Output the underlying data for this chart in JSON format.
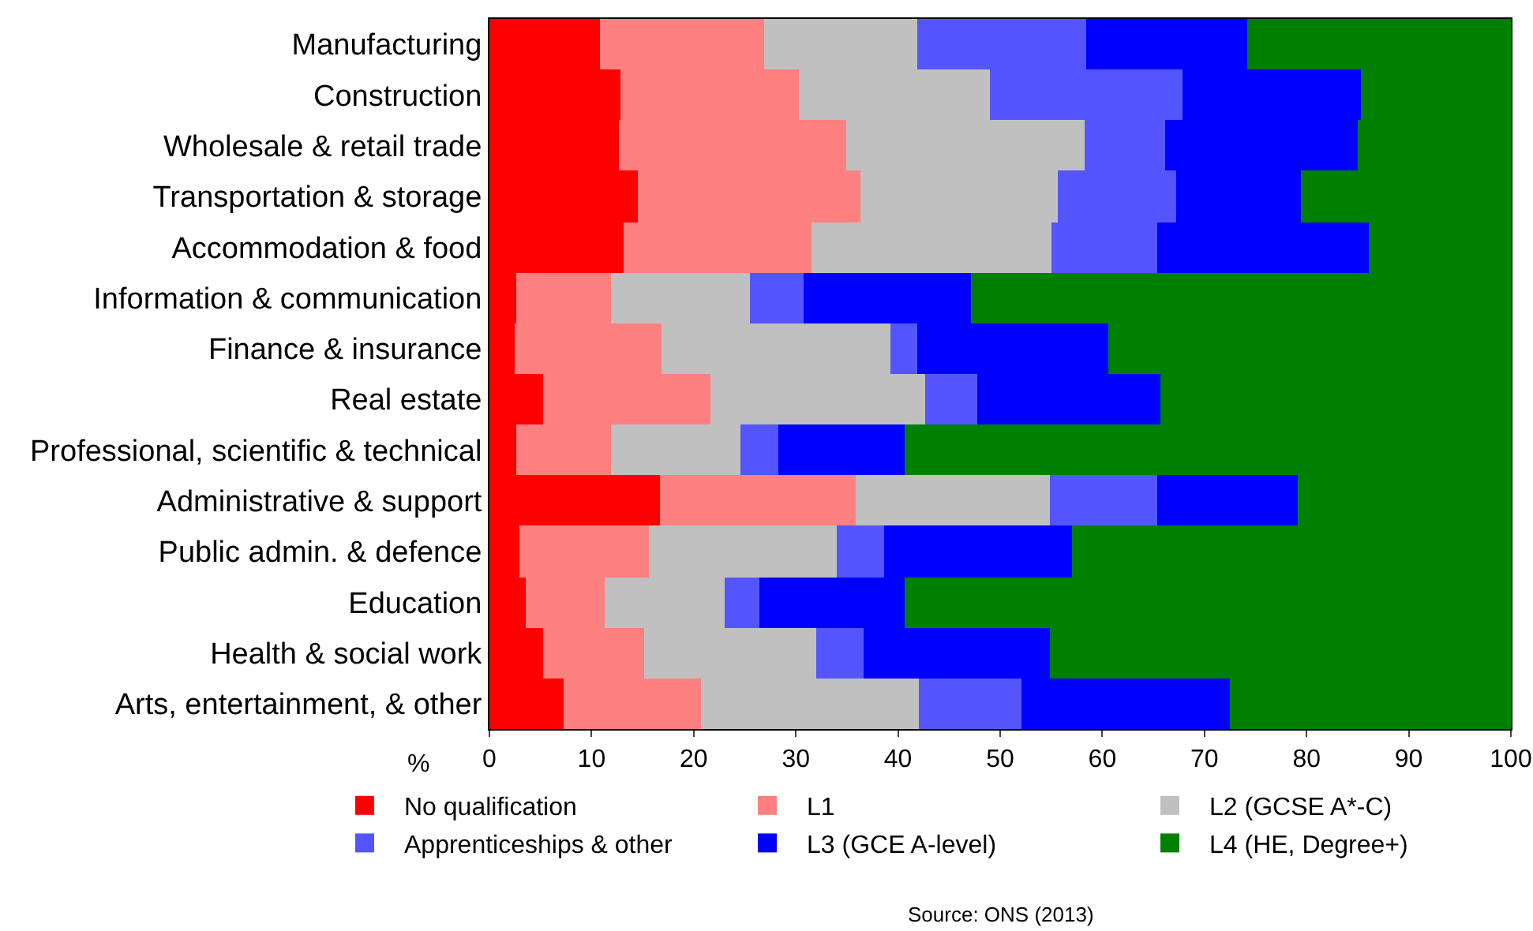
{
  "chart_data": {
    "type": "bar",
    "orientation": "horizontal",
    "stacked": true,
    "categories": [
      "Manufacturing",
      "Construction",
      "Wholesale & retail trade",
      "Transportation & storage",
      "Accommodation & food",
      "Information & communication",
      "Finance & insurance",
      "Real estate",
      "Professional, scientific & technical",
      "Administrative & support",
      "Public admin. & defence",
      "Education",
      "Health & social work",
      "Arts, entertainment, & other"
    ],
    "series": [
      {
        "name": "No qualification",
        "color": "#ff0000",
        "values": [
          10.8,
          12.8,
          12.7,
          14.5,
          13.1,
          2.6,
          2.5,
          5.3,
          2.7,
          16.7,
          3.0,
          3.5,
          5.3,
          7.2
        ]
      },
      {
        "name": "L1",
        "color": "#ff8080",
        "values": [
          16.1,
          17.5,
          22.2,
          21.8,
          18.4,
          9.3,
          14.3,
          16.3,
          9.2,
          19.2,
          12.6,
          7.8,
          9.8,
          13.5
        ]
      },
      {
        "name": "L2 (GCSE A*-C)",
        "color": "#c0c0c0",
        "values": [
          15.0,
          18.7,
          23.4,
          19.3,
          23.5,
          13.6,
          22.5,
          21.1,
          12.6,
          19.0,
          18.4,
          11.8,
          16.9,
          21.3
        ]
      },
      {
        "name": "Apprenticeships & other",
        "color": "#5555ff",
        "values": [
          16.5,
          18.9,
          7.9,
          11.6,
          10.4,
          5.3,
          2.6,
          5.1,
          3.8,
          10.5,
          4.7,
          3.3,
          4.6,
          10.1
        ]
      },
      {
        "name": "L3 (GCE A-level)",
        "color": "#0000ff",
        "values": [
          15.8,
          17.4,
          18.8,
          12.2,
          20.7,
          16.3,
          18.7,
          17.9,
          12.4,
          13.7,
          18.3,
          14.2,
          18.3,
          20.4
        ]
      },
      {
        "name": "L4 (HE, Degree+)",
        "color": "#008000",
        "values": [
          25.8,
          14.7,
          15.0,
          20.6,
          13.9,
          52.9,
          39.4,
          34.3,
          59.3,
          20.9,
          43.0,
          59.4,
          45.1,
          27.5
        ]
      }
    ],
    "xlabel": "%",
    "xlim": [
      0,
      100
    ],
    "xticks": [
      0,
      10,
      20,
      30,
      40,
      50,
      60,
      70,
      80,
      90,
      100
    ],
    "legend": "bottom",
    "annotations": [
      "Source: ONS (2013)"
    ]
  }
}
